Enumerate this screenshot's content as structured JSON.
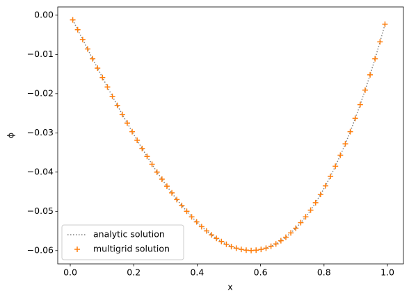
{
  "chart_data": {
    "type": "line-scatter",
    "x_label": "x",
    "y_label": "ϕ",
    "xlim": [
      -0.0395,
      1.0504
    ],
    "ylim": [
      -0.0634,
      0.0021
    ],
    "xticks": [
      {
        "value": 0,
        "label": "0.0"
      },
      {
        "value": 0.2,
        "label": "0.2"
      },
      {
        "value": 0.4,
        "label": "0.4"
      },
      {
        "value": 0.6,
        "label": "0.6"
      },
      {
        "value": 0.8,
        "label": "0.8"
      },
      {
        "value": 1,
        "label": "1.0"
      }
    ],
    "yticks": [
      {
        "value": 0,
        "label": "0.00"
      },
      {
        "value": -0.01,
        "label": "−0.01"
      },
      {
        "value": -0.02,
        "label": "−0.02"
      },
      {
        "value": -0.03,
        "label": "−0.03"
      },
      {
        "value": -0.04,
        "label": "−0.04"
      },
      {
        "value": -0.05,
        "label": "−0.05"
      },
      {
        "value": -0.06,
        "label": "−0.06"
      }
    ],
    "legend": "lower left",
    "x": [
      0.0078,
      0.0234,
      0.0391,
      0.0547,
      0.0703,
      0.0859,
      0.1016,
      0.1172,
      0.1328,
      0.1484,
      0.1641,
      0.1797,
      0.1953,
      0.2109,
      0.2266,
      0.2422,
      0.2578,
      0.2734,
      0.2891,
      0.3047,
      0.3203,
      0.3359,
      0.3516,
      0.3672,
      0.3828,
      0.3984,
      0.4141,
      0.4297,
      0.4453,
      0.4609,
      0.4766,
      0.4922,
      0.5078,
      0.5234,
      0.5391,
      0.5547,
      0.5703,
      0.5859,
      0.6016,
      0.6172,
      0.6328,
      0.6484,
      0.6641,
      0.6797,
      0.6953,
      0.7109,
      0.7266,
      0.7422,
      0.7578,
      0.7734,
      0.7891,
      0.8047,
      0.8203,
      0.8359,
      0.8516,
      0.8672,
      0.8828,
      0.8984,
      0.9141,
      0.9297,
      0.9453,
      0.9609,
      0.9766,
      0.9922
    ],
    "series": [
      {
        "name": "analytic solution",
        "color": "#7f7f7f",
        "style": "dotted",
        "values": [
          -0.0012,
          -0.0037,
          -0.0062,
          -0.0086,
          -0.0111,
          -0.0135,
          -0.0159,
          -0.0183,
          -0.0207,
          -0.023,
          -0.0253,
          -0.0275,
          -0.0297,
          -0.0319,
          -0.034,
          -0.036,
          -0.038,
          -0.04,
          -0.0418,
          -0.0436,
          -0.0453,
          -0.047,
          -0.0485,
          -0.05,
          -0.0514,
          -0.0527,
          -0.0539,
          -0.055,
          -0.056,
          -0.0569,
          -0.0577,
          -0.0584,
          -0.059,
          -0.0594,
          -0.0597,
          -0.0599,
          -0.06,
          -0.0599,
          -0.0597,
          -0.0594,
          -0.0589,
          -0.0583,
          -0.0575,
          -0.0566,
          -0.0555,
          -0.0543,
          -0.0529,
          -0.0514,
          -0.0497,
          -0.0478,
          -0.0457,
          -0.0435,
          -0.0411,
          -0.0385,
          -0.0357,
          -0.0328,
          -0.0297,
          -0.0263,
          -0.0228,
          -0.0191,
          -0.0152,
          -0.0111,
          -0.0068,
          -0.0023
        ]
      },
      {
        "name": "multigrid solution",
        "color": "#ff7f0e",
        "style": "plus",
        "values": [
          -0.0012,
          -0.0037,
          -0.0062,
          -0.0086,
          -0.0111,
          -0.0135,
          -0.0159,
          -0.0183,
          -0.0207,
          -0.023,
          -0.0253,
          -0.0275,
          -0.0297,
          -0.0319,
          -0.034,
          -0.036,
          -0.038,
          -0.04,
          -0.0418,
          -0.0436,
          -0.0453,
          -0.047,
          -0.0485,
          -0.05,
          -0.0514,
          -0.0527,
          -0.0539,
          -0.055,
          -0.056,
          -0.0569,
          -0.0577,
          -0.0584,
          -0.059,
          -0.0594,
          -0.0597,
          -0.0599,
          -0.06,
          -0.0599,
          -0.0597,
          -0.0594,
          -0.0589,
          -0.0583,
          -0.0575,
          -0.0566,
          -0.0555,
          -0.0543,
          -0.0529,
          -0.0514,
          -0.0497,
          -0.0478,
          -0.0457,
          -0.0435,
          -0.0411,
          -0.0385,
          -0.0357,
          -0.0328,
          -0.0297,
          -0.0263,
          -0.0228,
          -0.0191,
          -0.0152,
          -0.0111,
          -0.0068,
          -0.0023
        ]
      }
    ]
  }
}
